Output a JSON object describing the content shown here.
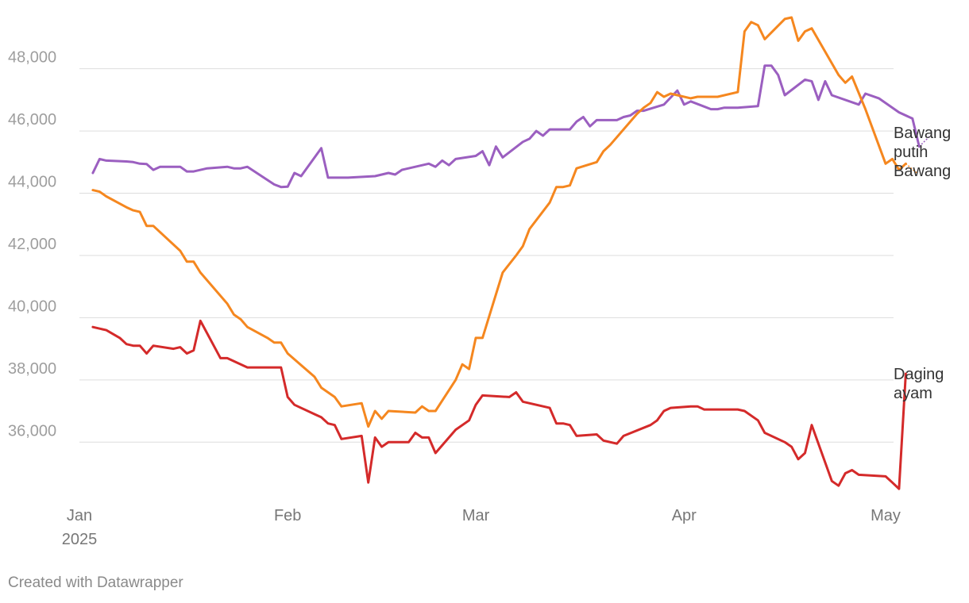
{
  "chart_data": {
    "type": "line",
    "title": "",
    "xlabel": "",
    "ylabel": "",
    "ylim": [
      34400,
      49700
    ],
    "y_ticks": [
      36000,
      38000,
      40000,
      42000,
      44000,
      46000,
      48000
    ],
    "y_tick_labels": [
      "36,000",
      "38,000",
      "40,000",
      "42,000",
      "44,000",
      "46,000",
      "48,000"
    ],
    "x_ticks": [
      {
        "date": "2025-01-01",
        "label": "Jan",
        "sublabel": "2025"
      },
      {
        "date": "2025-02-01",
        "label": "Feb",
        "sublabel": ""
      },
      {
        "date": "2025-03-01",
        "label": "Mar",
        "sublabel": ""
      },
      {
        "date": "2025-04-01",
        "label": "Apr",
        "sublabel": ""
      },
      {
        "date": "2025-05-01",
        "label": "May",
        "sublabel": ""
      }
    ],
    "grid": true,
    "legend": "direct labels at line ends",
    "series": [
      {
        "name": "Bawang putih",
        "label_lines": [
          "Bawang",
          "putih"
        ],
        "color": "#9b5fc0",
        "points": [
          [
            "2025-01-03",
            44650
          ],
          [
            "2025-01-04",
            45100
          ],
          [
            "2025-01-05",
            45050
          ],
          [
            "2025-01-08",
            45020
          ],
          [
            "2025-01-09",
            45000
          ],
          [
            "2025-01-10",
            44950
          ],
          [
            "2025-01-11",
            44940
          ],
          [
            "2025-01-12",
            44750
          ],
          [
            "2025-01-13",
            44850
          ],
          [
            "2025-01-16",
            44850
          ],
          [
            "2025-01-17",
            44700
          ],
          [
            "2025-01-18",
            44700
          ],
          [
            "2025-01-20",
            44800
          ],
          [
            "2025-01-23",
            44850
          ],
          [
            "2025-01-24",
            44800
          ],
          [
            "2025-01-25",
            44800
          ],
          [
            "2025-01-26",
            44850
          ],
          [
            "2025-01-30",
            44280
          ],
          [
            "2025-01-31",
            44200
          ],
          [
            "2025-02-01",
            44210
          ],
          [
            "2025-02-02",
            44650
          ],
          [
            "2025-02-03",
            44550
          ],
          [
            "2025-02-06",
            45450
          ],
          [
            "2025-02-07",
            44500
          ],
          [
            "2025-02-10",
            44500
          ],
          [
            "2025-02-14",
            44550
          ],
          [
            "2025-02-16",
            44650
          ],
          [
            "2025-02-17",
            44600
          ],
          [
            "2025-02-18",
            44750
          ],
          [
            "2025-02-22",
            44950
          ],
          [
            "2025-02-23",
            44850
          ],
          [
            "2025-02-24",
            45050
          ],
          [
            "2025-02-25",
            44900
          ],
          [
            "2025-02-26",
            45100
          ],
          [
            "2025-03-01",
            45200
          ],
          [
            "2025-03-02",
            45350
          ],
          [
            "2025-03-03",
            44900
          ],
          [
            "2025-03-04",
            45500
          ],
          [
            "2025-03-05",
            45150
          ],
          [
            "2025-03-08",
            45650
          ],
          [
            "2025-03-09",
            45750
          ],
          [
            "2025-03-10",
            46000
          ],
          [
            "2025-03-11",
            45850
          ],
          [
            "2025-03-12",
            46050
          ],
          [
            "2025-03-15",
            46050
          ],
          [
            "2025-03-16",
            46300
          ],
          [
            "2025-03-17",
            46450
          ],
          [
            "2025-03-18",
            46150
          ],
          [
            "2025-03-19",
            46350
          ],
          [
            "2025-03-22",
            46350
          ],
          [
            "2025-03-23",
            46450
          ],
          [
            "2025-03-24",
            46500
          ],
          [
            "2025-03-25",
            46650
          ],
          [
            "2025-03-26",
            46650
          ],
          [
            "2025-03-29",
            46850
          ],
          [
            "2025-03-31",
            47300
          ],
          [
            "2025-04-01",
            46850
          ],
          [
            "2025-04-02",
            46950
          ],
          [
            "2025-04-05",
            46700
          ],
          [
            "2025-04-06",
            46700
          ],
          [
            "2025-04-07",
            46750
          ],
          [
            "2025-04-09",
            46750
          ],
          [
            "2025-04-12",
            46800
          ],
          [
            "2025-04-13",
            48100
          ],
          [
            "2025-04-14",
            48100
          ],
          [
            "2025-04-15",
            47800
          ],
          [
            "2025-04-16",
            47150
          ],
          [
            "2025-04-19",
            47650
          ],
          [
            "2025-04-20",
            47600
          ],
          [
            "2025-04-21",
            47000
          ],
          [
            "2025-04-22",
            47600
          ],
          [
            "2025-04-23",
            47150
          ],
          [
            "2025-04-27",
            46850
          ],
          [
            "2025-04-28",
            47200
          ],
          [
            "2025-04-30",
            47050
          ],
          [
            "2025-05-03",
            46600
          ],
          [
            "2025-05-05",
            46400
          ],
          [
            "2025-05-06",
            45500
          ]
        ]
      },
      {
        "name": "Bawang",
        "label_lines": [
          "Bawang"
        ],
        "color": "#f5871f",
        "points": [
          [
            "2025-01-03",
            44100
          ],
          [
            "2025-01-04",
            44050
          ],
          [
            "2025-01-05",
            43900
          ],
          [
            "2025-01-08",
            43550
          ],
          [
            "2025-01-09",
            43450
          ],
          [
            "2025-01-10",
            43400
          ],
          [
            "2025-01-11",
            42950
          ],
          [
            "2025-01-12",
            42950
          ],
          [
            "2025-01-16",
            42150
          ],
          [
            "2025-01-17",
            41800
          ],
          [
            "2025-01-18",
            41800
          ],
          [
            "2025-01-19",
            41450
          ],
          [
            "2025-01-23",
            40450
          ],
          [
            "2025-01-24",
            40100
          ],
          [
            "2025-01-25",
            39950
          ],
          [
            "2025-01-26",
            39700
          ],
          [
            "2025-01-29",
            39350
          ],
          [
            "2025-01-30",
            39200
          ],
          [
            "2025-01-31",
            39200
          ],
          [
            "2025-02-01",
            38850
          ],
          [
            "2025-02-05",
            38100
          ],
          [
            "2025-02-06",
            37750
          ],
          [
            "2025-02-08",
            37450
          ],
          [
            "2025-02-09",
            37150
          ],
          [
            "2025-02-12",
            37250
          ],
          [
            "2025-02-13",
            36500
          ],
          [
            "2025-02-14",
            37000
          ],
          [
            "2025-02-15",
            36750
          ],
          [
            "2025-02-16",
            37000
          ],
          [
            "2025-02-20",
            36950
          ],
          [
            "2025-02-21",
            37150
          ],
          [
            "2025-02-22",
            37000
          ],
          [
            "2025-02-23",
            37000
          ],
          [
            "2025-02-26",
            38000
          ],
          [
            "2025-02-27",
            38500
          ],
          [
            "2025-02-28",
            38350
          ],
          [
            "2025-03-01",
            39350
          ],
          [
            "2025-03-02",
            39350
          ],
          [
            "2025-03-05",
            41450
          ],
          [
            "2025-03-07",
            42000
          ],
          [
            "2025-03-08",
            42300
          ],
          [
            "2025-03-09",
            42850
          ],
          [
            "2025-03-12",
            43700
          ],
          [
            "2025-03-13",
            44200
          ],
          [
            "2025-03-14",
            44200
          ],
          [
            "2025-03-15",
            44250
          ],
          [
            "2025-03-16",
            44800
          ],
          [
            "2025-03-19",
            45000
          ],
          [
            "2025-03-20",
            45350
          ],
          [
            "2025-03-21",
            45550
          ],
          [
            "2025-03-25",
            46550
          ],
          [
            "2025-03-26",
            46750
          ],
          [
            "2025-03-27",
            46900
          ],
          [
            "2025-03-28",
            47250
          ],
          [
            "2025-03-29",
            47100
          ],
          [
            "2025-03-30",
            47200
          ],
          [
            "2025-04-02",
            47050
          ],
          [
            "2025-04-03",
            47100
          ],
          [
            "2025-04-06",
            47100
          ],
          [
            "2025-04-09",
            47250
          ],
          [
            "2025-04-10",
            49200
          ],
          [
            "2025-04-11",
            49500
          ],
          [
            "2025-04-12",
            49400
          ],
          [
            "2025-04-13",
            48950
          ],
          [
            "2025-04-16",
            49600
          ],
          [
            "2025-04-17",
            49650
          ],
          [
            "2025-04-18",
            48900
          ],
          [
            "2025-04-19",
            49200
          ],
          [
            "2025-04-20",
            49300
          ],
          [
            "2025-04-24",
            47800
          ],
          [
            "2025-04-25",
            47550
          ],
          [
            "2025-04-26",
            47750
          ],
          [
            "2025-04-28",
            46700
          ],
          [
            "2025-05-01",
            44950
          ],
          [
            "2025-05-02",
            45100
          ],
          [
            "2025-05-03",
            44750
          ],
          [
            "2025-05-04",
            44950
          ]
        ]
      },
      {
        "name": "Daging ayam",
        "label_lines": [
          "Daging",
          "ayam"
        ],
        "color": "#d42a2a",
        "points": [
          [
            "2025-01-03",
            39700
          ],
          [
            "2025-01-05",
            39600
          ],
          [
            "2025-01-07",
            39350
          ],
          [
            "2025-01-08",
            39150
          ],
          [
            "2025-01-09",
            39100
          ],
          [
            "2025-01-10",
            39100
          ],
          [
            "2025-01-11",
            38850
          ],
          [
            "2025-01-12",
            39100
          ],
          [
            "2025-01-15",
            39000
          ],
          [
            "2025-01-16",
            39050
          ],
          [
            "2025-01-17",
            38850
          ],
          [
            "2025-01-18",
            38950
          ],
          [
            "2025-01-19",
            39900
          ],
          [
            "2025-01-22",
            38700
          ],
          [
            "2025-01-23",
            38700
          ],
          [
            "2025-01-26",
            38400
          ],
          [
            "2025-01-30",
            38400
          ],
          [
            "2025-01-31",
            38400
          ],
          [
            "2025-02-01",
            37450
          ],
          [
            "2025-02-02",
            37200
          ],
          [
            "2025-02-05",
            36900
          ],
          [
            "2025-02-06",
            36800
          ],
          [
            "2025-02-07",
            36600
          ],
          [
            "2025-02-08",
            36550
          ],
          [
            "2025-02-09",
            36100
          ],
          [
            "2025-02-12",
            36200
          ],
          [
            "2025-02-13",
            34700
          ],
          [
            "2025-02-14",
            36150
          ],
          [
            "2025-02-15",
            35850
          ],
          [
            "2025-02-16",
            36000
          ],
          [
            "2025-02-19",
            36000
          ],
          [
            "2025-02-20",
            36300
          ],
          [
            "2025-02-21",
            36150
          ],
          [
            "2025-02-22",
            36150
          ],
          [
            "2025-02-23",
            35650
          ],
          [
            "2025-02-26",
            36400
          ],
          [
            "2025-02-28",
            36700
          ],
          [
            "2025-03-01",
            37200
          ],
          [
            "2025-03-02",
            37500
          ],
          [
            "2025-03-06",
            37450
          ],
          [
            "2025-03-07",
            37600
          ],
          [
            "2025-03-08",
            37300
          ],
          [
            "2025-03-12",
            37100
          ],
          [
            "2025-03-13",
            36600
          ],
          [
            "2025-03-14",
            36600
          ],
          [
            "2025-03-15",
            36550
          ],
          [
            "2025-03-16",
            36200
          ],
          [
            "2025-03-19",
            36250
          ],
          [
            "2025-03-20",
            36050
          ],
          [
            "2025-03-22",
            35950
          ],
          [
            "2025-03-23",
            36200
          ],
          [
            "2025-03-27",
            36550
          ],
          [
            "2025-03-28",
            36700
          ],
          [
            "2025-03-29",
            37000
          ],
          [
            "2025-03-30",
            37100
          ],
          [
            "2025-04-02",
            37150
          ],
          [
            "2025-04-03",
            37150
          ],
          [
            "2025-04-04",
            37050
          ],
          [
            "2025-04-09",
            37050
          ],
          [
            "2025-04-10",
            37000
          ],
          [
            "2025-04-12",
            36700
          ],
          [
            "2025-04-13",
            36300
          ],
          [
            "2025-04-16",
            36000
          ],
          [
            "2025-04-17",
            35850
          ],
          [
            "2025-04-18",
            35450
          ],
          [
            "2025-04-19",
            35650
          ],
          [
            "2025-04-20",
            36550
          ],
          [
            "2025-04-23",
            34750
          ],
          [
            "2025-04-24",
            34600
          ],
          [
            "2025-04-25",
            35000
          ],
          [
            "2025-04-26",
            35100
          ],
          [
            "2025-04-27",
            34950
          ],
          [
            "2025-05-01",
            34900
          ],
          [
            "2025-05-02",
            34700
          ],
          [
            "2025-05-03",
            34500
          ],
          [
            "2025-05-04",
            38200
          ]
        ]
      }
    ]
  },
  "credit": "Created with Datawrapper"
}
